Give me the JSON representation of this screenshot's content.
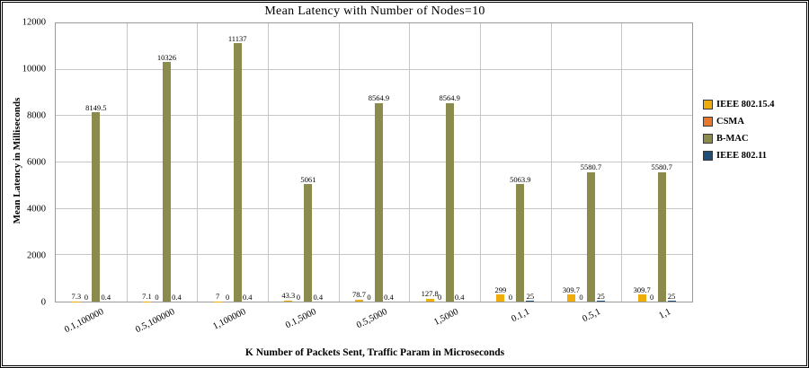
{
  "chart_data": {
    "type": "bar",
    "title": "Mean Latency with Number of Nodes=10",
    "xlabel": "K Number of Packets Sent, Traffic Param in Microseconds",
    "ylabel": "Mean Latency in Milliseconds",
    "ylim": [
      0,
      12000
    ],
    "ytick_step": 2000,
    "yticks": [
      "0",
      "2000",
      "4000",
      "6000",
      "8000",
      "10000",
      "12000"
    ],
    "grid": true,
    "legend_position": "right",
    "categories": [
      "0.1,100000",
      "0.5,100000",
      "1,100000",
      "0.1,5000",
      "0.5,5000",
      "1,5000",
      "0.1,1",
      "0.5,1",
      "1,1"
    ],
    "series": [
      {
        "name": "IEEE 802.15.4",
        "color": "#EFAD0C",
        "values": [
          7.3,
          7.1,
          7,
          43.3,
          78.7,
          127.8,
          299,
          309.7,
          309.7
        ],
        "labels": [
          "7.3",
          "7.1",
          "7",
          "43.3",
          "78.7",
          "127.8",
          "299",
          "309.7",
          "309.7"
        ]
      },
      {
        "name": "CSMA",
        "color": "#E8762C",
        "values": [
          0,
          0,
          0,
          0,
          0,
          0,
          0,
          0,
          0
        ],
        "labels": [
          "0",
          "0",
          "0",
          "0",
          "0",
          "0",
          "0",
          "0",
          "0"
        ]
      },
      {
        "name": "B-MAC",
        "color": "#8A8B4D",
        "values": [
          8149.5,
          10326,
          11137,
          5061,
          8564.9,
          8564.9,
          5063.9,
          5580.7,
          5580.7
        ],
        "labels": [
          "8149.5",
          "10326",
          "11137",
          "5061",
          "8564.9",
          "8564.9",
          "5063.9",
          "5580.7",
          "5580.7"
        ]
      },
      {
        "name": "IEEE 802.11",
        "color": "#1F4E79",
        "values": [
          0.4,
          0.4,
          0.4,
          0.4,
          0.4,
          0.4,
          25,
          25,
          25
        ],
        "labels": [
          "0.4",
          "0.4",
          "0.4",
          "0.4",
          "0.4",
          "0.4",
          "25",
          "25",
          "25"
        ]
      }
    ],
    "colors": {
      "gridline": "#c6c6c6",
      "plot_border": "#9a9a9a",
      "frame_border": "#000000"
    }
  }
}
